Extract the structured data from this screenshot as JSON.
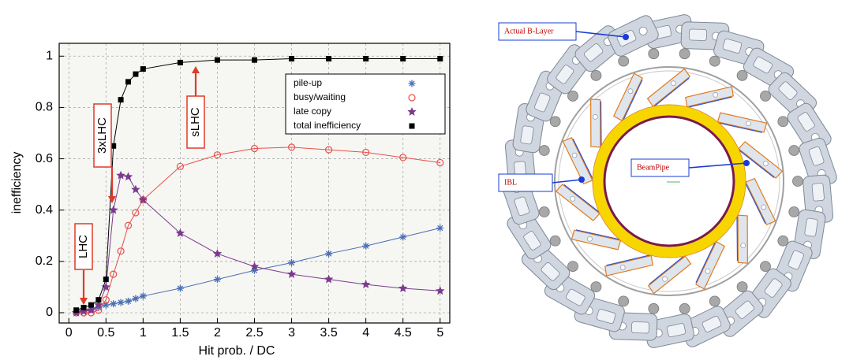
{
  "chart_data": {
    "type": "line",
    "xlabel": "Hit prob. / DC",
    "ylabel": "inefficiency",
    "xlim": [
      -0.13,
      5.13
    ],
    "ylim": [
      -0.04,
      1.05
    ],
    "xticks": [
      0,
      0.5,
      1,
      1.5,
      2,
      2.5,
      3,
      3.5,
      4,
      4.5,
      5
    ],
    "yticks": [
      0,
      0.2,
      0.4,
      0.6,
      0.8,
      1
    ],
    "grid": true,
    "legend": "upper right",
    "annotations": [
      "LHC",
      "3xLHC",
      "sLHC"
    ],
    "x": [
      0.1,
      0.2,
      0.3,
      0.4,
      0.5,
      0.6,
      0.7,
      0.8,
      0.9,
      1.0,
      1.5,
      2,
      2.5,
      3,
      3.5,
      4,
      4.5,
      5
    ],
    "series": [
      {
        "name": "pile-up",
        "color": "#4a6fb5",
        "marker": "asterisk",
        "values": [
          0.005,
          0.01,
          0.015,
          0.02,
          0.03,
          0.035,
          0.04,
          0.045,
          0.055,
          0.065,
          0.095,
          0.13,
          0.165,
          0.195,
          0.23,
          0.26,
          0.295,
          0.33
        ]
      },
      {
        "name": "busy/waiting",
        "color": "#e8504a",
        "marker": "circle",
        "values": [
          0,
          0,
          0,
          0.01,
          0.05,
          0.15,
          0.24,
          0.34,
          0.39,
          0.44,
          0.57,
          0.615,
          0.64,
          0.645,
          0.635,
          0.625,
          0.605,
          0.585
        ]
      },
      {
        "name": "late copy",
        "color": "#7b3a8e",
        "marker": "star",
        "values": [
          0,
          0.005,
          0.01,
          0.03,
          0.1,
          0.4,
          0.535,
          0.53,
          0.48,
          0.44,
          0.31,
          0.23,
          0.18,
          0.15,
          0.13,
          0.11,
          0.095,
          0.085
        ]
      },
      {
        "name": "total inefficiency",
        "color": "#000000",
        "marker": "square",
        "values": [
          0.01,
          0.02,
          0.03,
          0.05,
          0.13,
          0.65,
          0.83,
          0.9,
          0.93,
          0.95,
          0.975,
          0.985,
          0.985,
          0.99,
          0.99,
          0.99,
          0.99,
          0.99
        ]
      }
    ]
  },
  "diagram": {
    "labels": [
      "Actual B-Layer",
      "IBL",
      "BeamPipe"
    ]
  }
}
